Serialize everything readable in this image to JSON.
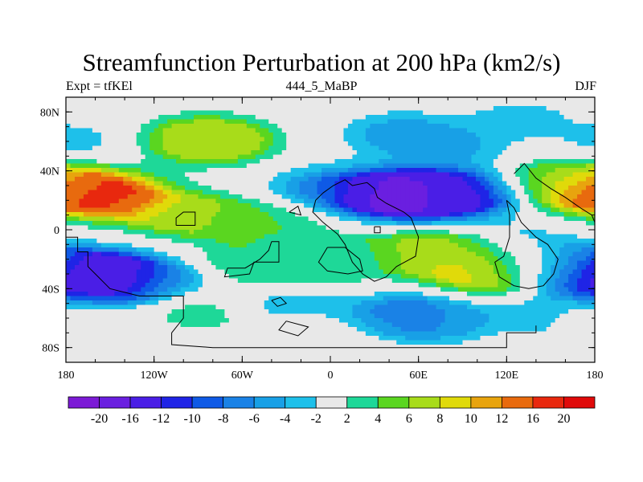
{
  "title": "Streamfunction Perturbation at 200 hPa (km2/s)",
  "subtitle_left": "Expt = tfKEl",
  "subtitle_center": "444_5_MaBP",
  "subtitle_right": "DJF",
  "chart_data": {
    "type": "heatmap",
    "title": "Streamfunction Perturbation at 200 hPa (km2/s)",
    "xlabel": "",
    "ylabel": "",
    "x_ticks": [
      "180",
      "120W",
      "60W",
      "0",
      "60E",
      "120E",
      "180"
    ],
    "x_tick_values": [
      -180,
      -120,
      -60,
      0,
      60,
      120,
      180
    ],
    "y_ticks": [
      "80N",
      "40N",
      "0",
      "40S",
      "80S"
    ],
    "y_tick_values": [
      80,
      40,
      0,
      -40,
      -80
    ],
    "xlim": [
      -180,
      180
    ],
    "ylim": [
      -90,
      90
    ],
    "levels": [
      -20,
      -16,
      -12,
      -10,
      -8,
      -6,
      -4,
      -2,
      2,
      4,
      6,
      8,
      10,
      12,
      16,
      20
    ],
    "level_labels": [
      "-20",
      "-16",
      "-12",
      "-10",
      "-8",
      "-6",
      "-4",
      "-2",
      "2",
      "4",
      "6",
      "8",
      "10",
      "12",
      "16",
      "20"
    ],
    "colors": [
      "#7c1ad6",
      "#6a1fe0",
      "#4a1ee6",
      "#1f24e6",
      "#0f5ae6",
      "#1a82e6",
      "#18a0e6",
      "#1ec0ea",
      "#e8e8e8",
      "#1ed898",
      "#5ad620",
      "#a8dc1a",
      "#e0da0a",
      "#e8a40e",
      "#e86a0e",
      "#e8280e",
      "#e00a0a"
    ],
    "features": [
      {
        "lon": -156,
        "lat": 24,
        "value": 21
      },
      {
        "lon": -110,
        "lat": 12,
        "value": 7
      },
      {
        "lon": -80,
        "lat": 8,
        "value": 6
      },
      {
        "lon": -35,
        "lat": 5,
        "value": 4
      },
      {
        "lon": -90,
        "lat": 62,
        "value": 6
      },
      {
        "lon": -78,
        "lat": 60,
        "value": 9
      },
      {
        "lon": -158,
        "lat": -30,
        "value": -14
      },
      {
        "lon": -160,
        "lat": -34,
        "value": -21
      },
      {
        "lon": -118,
        "lat": -35,
        "value": -5
      },
      {
        "lon": 40,
        "lat": 24,
        "value": -21
      },
      {
        "lon": 65,
        "lat": 24,
        "value": -16
      },
      {
        "lon": 92,
        "lat": 24,
        "value": -12
      },
      {
        "lon": -5,
        "lat": 28,
        "value": -6
      },
      {
        "lon": 48,
        "lat": 65,
        "value": -6
      },
      {
        "lon": 85,
        "lat": 55,
        "value": -4
      },
      {
        "lon": 130,
        "lat": 76,
        "value": -3
      },
      {
        "lon": -170,
        "lat": 60,
        "value": -3
      },
      {
        "lon": -55,
        "lat": -20,
        "value": 4
      },
      {
        "lon": -20,
        "lat": -28,
        "value": 8
      },
      {
        "lon": 10,
        "lat": -18,
        "value": 5
      },
      {
        "lon": 60,
        "lat": -15,
        "value": 7
      },
      {
        "lon": 90,
        "lat": -20,
        "value": 9
      },
      {
        "lon": 110,
        "lat": -30,
        "value": 10
      },
      {
        "lon": 150,
        "lat": -25,
        "value": 4
      },
      {
        "lon": -5,
        "lat": -22,
        "value": -4
      },
      {
        "lon": 50,
        "lat": -58,
        "value": -8
      },
      {
        "lon": 75,
        "lat": -62,
        "value": -5
      },
      {
        "lon": 160,
        "lat": -26,
        "value": -14
      },
      {
        "lon": 170,
        "lat": 28,
        "value": 12
      },
      {
        "lon": 150,
        "lat": 35,
        "value": 4
      },
      {
        "lon": 130,
        "lat": -8,
        "value": -3
      },
      {
        "lon": -30,
        "lat": -50,
        "value": -5
      },
      {
        "lon": -85,
        "lat": -55,
        "value": 4
      },
      {
        "lon": 155,
        "lat": -58,
        "value": -5
      },
      {
        "lon": -175,
        "lat": -60,
        "value": 4
      },
      {
        "lon": -10,
        "lat": -70,
        "value": 2
      }
    ],
    "grid": false,
    "legend": "bottom colorbar"
  }
}
